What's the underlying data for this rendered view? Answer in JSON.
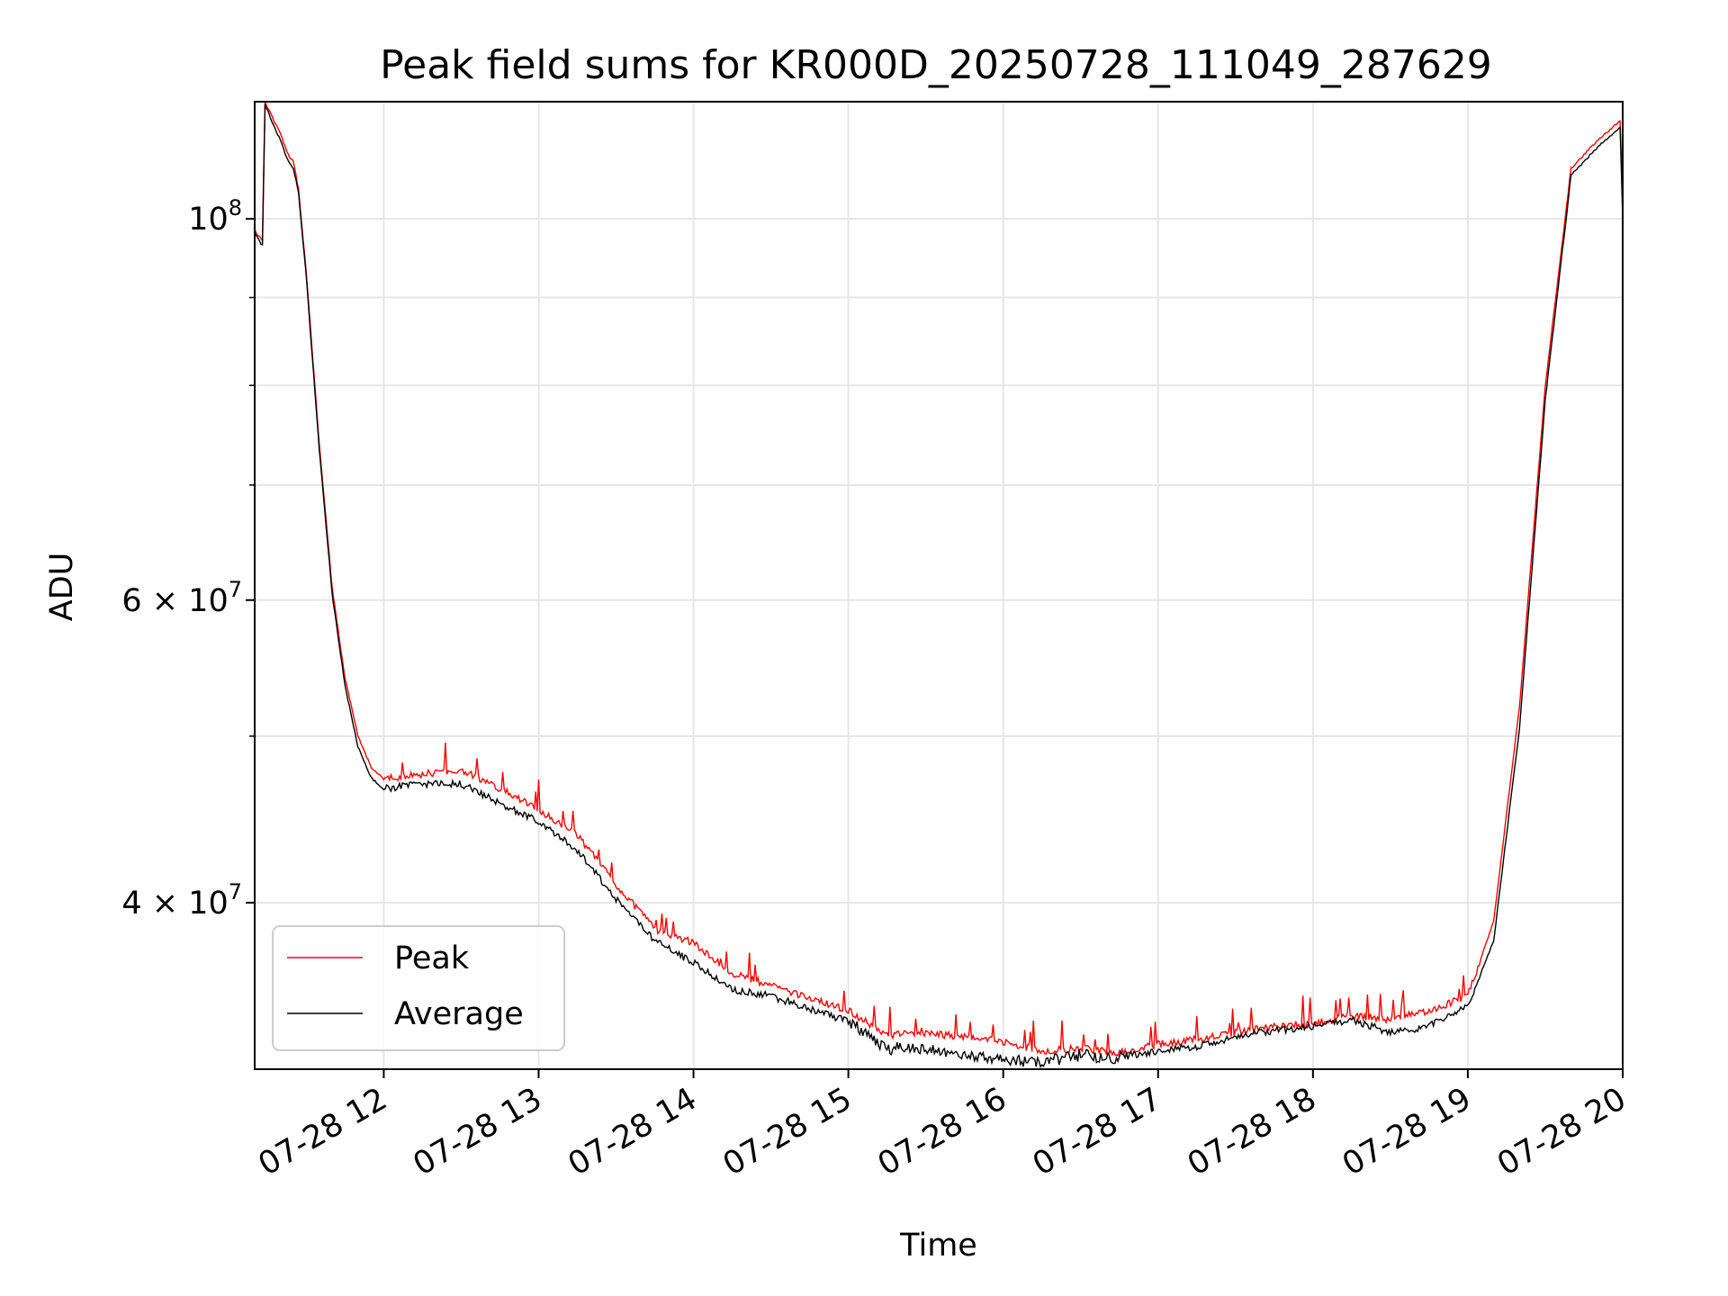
{
  "chart_data": {
    "type": "line",
    "title": "Peak field sums for KR000D_20250728_111049_287629",
    "xlabel": "Time",
    "ylabel": "ADU",
    "yscale": "log",
    "xlim": [
      "2025-07-28 11:10",
      "2025-07-28 20:00"
    ],
    "ylim": [
      32000000,
      117000000
    ],
    "grid": true,
    "legend_position": "lower-left",
    "x_ticks": [
      {
        "t": "2025-07-28 12:00",
        "label": "07-28 12"
      },
      {
        "t": "2025-07-28 13:00",
        "label": "07-28 13"
      },
      {
        "t": "2025-07-28 14:00",
        "label": "07-28 14"
      },
      {
        "t": "2025-07-28 15:00",
        "label": "07-28 15"
      },
      {
        "t": "2025-07-28 16:00",
        "label": "07-28 16"
      },
      {
        "t": "2025-07-28 17:00",
        "label": "07-28 17"
      },
      {
        "t": "2025-07-28 18:00",
        "label": "07-28 18"
      },
      {
        "t": "2025-07-28 19:00",
        "label": "07-28 19"
      },
      {
        "t": "2025-07-28 20:00",
        "label": "07-28 20"
      }
    ],
    "y_ticks": [
      {
        "value": 40000000,
        "base": "4 × 10",
        "exp": "7"
      },
      {
        "value": 60000000,
        "base": "6 × 10",
        "exp": "7"
      },
      {
        "value": 100000000,
        "base": "10",
        "exp": "8"
      }
    ],
    "y_minor_ticks": [
      50000000,
      70000000,
      80000000,
      90000000
    ],
    "series": [
      {
        "name": "Peak",
        "color": "#ff0000",
        "points": [
          [
            "2025-07-28 11:10",
            98500000
          ],
          [
            "2025-07-28 11:13",
            97000000
          ],
          [
            "2025-07-28 11:14",
            117000000
          ],
          [
            "2025-07-28 11:20",
            112000000
          ],
          [
            "2025-07-28 11:23",
            109000000
          ],
          [
            "2025-07-28 11:25",
            108000000
          ],
          [
            "2025-07-28 11:27",
            104000000
          ],
          [
            "2025-07-28 11:30",
            93000000
          ],
          [
            "2025-07-28 11:35",
            74000000
          ],
          [
            "2025-07-28 11:40",
            61000000
          ],
          [
            "2025-07-28 11:45",
            54000000
          ],
          [
            "2025-07-28 11:50",
            50000000
          ],
          [
            "2025-07-28 11:55",
            48000000
          ],
          [
            "2025-07-28 12:00",
            47200000
          ],
          [
            "2025-07-28 12:15",
            47500000
          ],
          [
            "2025-07-28 12:30",
            47800000
          ],
          [
            "2025-07-28 12:45",
            46600000
          ],
          [
            "2025-07-28 13:00",
            45300000
          ],
          [
            "2025-07-28 13:15",
            43800000
          ],
          [
            "2025-07-28 13:30",
            41000000
          ],
          [
            "2025-07-28 13:45",
            38600000
          ],
          [
            "2025-07-28 14:00",
            37900000
          ],
          [
            "2025-07-28 14:15",
            36400000
          ],
          [
            "2025-07-28 14:30",
            35800000
          ],
          [
            "2025-07-28 14:45",
            35200000
          ],
          [
            "2025-07-28 15:00",
            34600000
          ],
          [
            "2025-07-28 15:15",
            33500000
          ],
          [
            "2025-07-28 15:30",
            33600000
          ],
          [
            "2025-07-28 15:45",
            33400000
          ],
          [
            "2025-07-28 16:00",
            33200000
          ],
          [
            "2025-07-28 16:15",
            32800000
          ],
          [
            "2025-07-28 16:30",
            32900000
          ],
          [
            "2025-07-28 16:45",
            32700000
          ],
          [
            "2025-07-28 17:00",
            33100000
          ],
          [
            "2025-07-28 17:15",
            33300000
          ],
          [
            "2025-07-28 17:30",
            33600000
          ],
          [
            "2025-07-28 17:45",
            33900000
          ],
          [
            "2025-07-28 18:00",
            34000000
          ],
          [
            "2025-07-28 18:15",
            34400000
          ],
          [
            "2025-07-28 18:30",
            34200000
          ],
          [
            "2025-07-28 18:45",
            34600000
          ],
          [
            "2025-07-28 19:00",
            35300000
          ],
          [
            "2025-07-28 19:10",
            39000000
          ],
          [
            "2025-07-28 19:20",
            52000000
          ],
          [
            "2025-07-28 19:30",
            80000000
          ],
          [
            "2025-07-28 19:40",
            107000000
          ],
          [
            "2025-07-28 19:50",
            111000000
          ],
          [
            "2025-07-28 19:59",
            114000000
          ],
          [
            "2025-07-28 20:00",
            101000000
          ]
        ]
      },
      {
        "name": "Average",
        "color": "#000000",
        "points": [
          [
            "2025-07-28 11:10",
            98000000
          ],
          [
            "2025-07-28 11:13",
            96500000
          ],
          [
            "2025-07-28 11:14",
            116500000
          ],
          [
            "2025-07-28 11:20",
            111000000
          ],
          [
            "2025-07-28 11:23",
            108000000
          ],
          [
            "2025-07-28 11:25",
            107000000
          ],
          [
            "2025-07-28 11:27",
            103500000
          ],
          [
            "2025-07-28 11:30",
            92500000
          ],
          [
            "2025-07-28 11:35",
            73500000
          ],
          [
            "2025-07-28 11:40",
            60500000
          ],
          [
            "2025-07-28 11:45",
            53500000
          ],
          [
            "2025-07-28 11:50",
            49300000
          ],
          [
            "2025-07-28 11:55",
            47300000
          ],
          [
            "2025-07-28 12:00",
            46600000
          ],
          [
            "2025-07-28 12:15",
            46900000
          ],
          [
            "2025-07-28 12:30",
            46900000
          ],
          [
            "2025-07-28 12:45",
            45700000
          ],
          [
            "2025-07-28 13:00",
            44600000
          ],
          [
            "2025-07-28 13:15",
            42900000
          ],
          [
            "2025-07-28 13:30",
            40200000
          ],
          [
            "2025-07-28 13:45",
            38000000
          ],
          [
            "2025-07-28 14:00",
            36900000
          ],
          [
            "2025-07-28 14:15",
            35600000
          ],
          [
            "2025-07-28 14:30",
            35300000
          ],
          [
            "2025-07-28 14:45",
            34700000
          ],
          [
            "2025-07-28 15:00",
            34100000
          ],
          [
            "2025-07-28 15:15",
            32900000
          ],
          [
            "2025-07-28 15:30",
            32900000
          ],
          [
            "2025-07-28 15:45",
            32600000
          ],
          [
            "2025-07-28 16:00",
            32400000
          ],
          [
            "2025-07-28 16:15",
            32300000
          ],
          [
            "2025-07-28 16:30",
            32600000
          ],
          [
            "2025-07-28 16:45",
            32500000
          ],
          [
            "2025-07-28 17:00",
            32800000
          ],
          [
            "2025-07-28 17:15",
            33000000
          ],
          [
            "2025-07-28 17:30",
            33400000
          ],
          [
            "2025-07-28 17:45",
            33700000
          ],
          [
            "2025-07-28 18:00",
            33900000
          ],
          [
            "2025-07-28 18:15",
            34200000
          ],
          [
            "2025-07-28 18:30",
            33600000
          ],
          [
            "2025-07-28 18:45",
            33900000
          ],
          [
            "2025-07-28 19:00",
            34800000
          ],
          [
            "2025-07-28 19:10",
            38000000
          ],
          [
            "2025-07-28 19:20",
            50500000
          ],
          [
            "2025-07-28 19:30",
            78500000
          ],
          [
            "2025-07-28 19:40",
            106000000
          ],
          [
            "2025-07-28 19:50",
            110000000
          ],
          [
            "2025-07-28 19:59",
            113000000
          ],
          [
            "2025-07-28 20:00",
            100000000
          ]
        ]
      }
    ]
  }
}
